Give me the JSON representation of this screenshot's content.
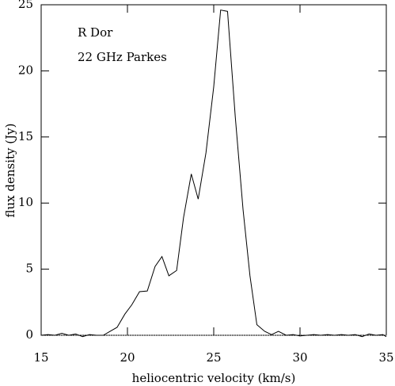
{
  "chart_data": {
    "type": "line",
    "xlabel": "heliocentric velocity (km/s)",
    "ylabel": "flux density (Jy)",
    "annotations": [
      "R Dor",
      "22 GHz Parkes"
    ],
    "x": [
      15.0,
      15.4,
      15.8,
      16.2,
      16.6,
      17.0,
      17.4,
      17.8,
      18.2,
      18.6,
      19.0,
      19.4,
      19.85,
      20.25,
      20.7,
      21.15,
      21.6,
      22.0,
      22.4,
      22.85,
      23.25,
      23.7,
      24.1,
      24.55,
      25.0,
      25.4,
      25.8,
      26.25,
      26.7,
      27.1,
      27.5,
      27.95,
      28.35,
      28.75,
      29.2,
      29.6,
      30.0,
      30.4,
      30.8,
      31.2,
      31.6,
      32.0,
      32.4,
      32.8,
      33.2,
      33.6,
      34.0,
      34.4,
      34.8,
      35.0
    ],
    "series": [
      {
        "color": "#000000",
        "values": [
          0.0,
          0.05,
          0.0,
          0.15,
          0.0,
          0.1,
          -0.1,
          0.05,
          0.0,
          0.0,
          0.3,
          0.6,
          1.6,
          2.3,
          3.3,
          3.35,
          5.2,
          5.95,
          4.5,
          4.9,
          8.9,
          12.2,
          10.3,
          13.8,
          18.8,
          24.6,
          24.5,
          16.5,
          9.5,
          4.5,
          0.8,
          0.3,
          0.05,
          0.3,
          0.0,
          0.05,
          -0.05,
          0.0,
          0.05,
          0.0,
          0.05,
          0.0,
          0.05,
          0.0,
          0.05,
          -0.1,
          0.1,
          0.0,
          0.05,
          -0.1
        ]
      }
    ],
    "xlim": [
      15,
      35
    ],
    "xticks": [
      15,
      20,
      25,
      30,
      35
    ],
    "ylim": [
      0,
      25
    ],
    "yticks": [
      0,
      5,
      10,
      15,
      20,
      25
    ]
  }
}
